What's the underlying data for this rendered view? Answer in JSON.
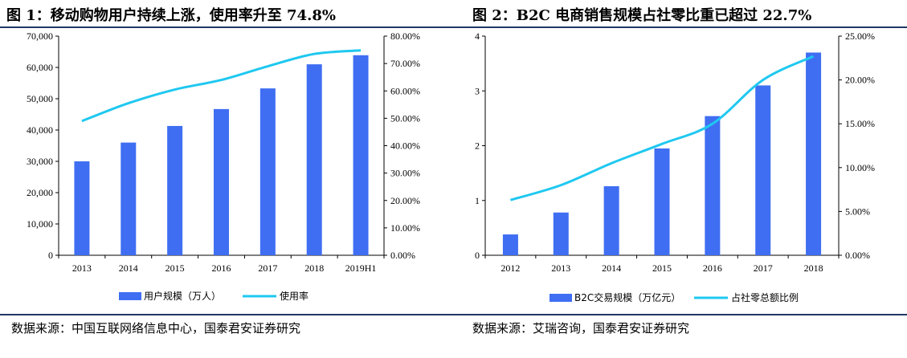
{
  "figure1": {
    "title": "图 1：移动购物用户持续上涨，使用率升至 74.8%",
    "source": "数据来源：中国互联网络信息中心，国泰君安证券研究"
  },
  "figure2": {
    "title": "图 2：B2C 电商销售规模占社零比重已超过 22.7%",
    "source": "数据来源：艾瑞咨询，国泰君安证券研究"
  },
  "colors": {
    "bar": "#3f6ef2",
    "line": "#1fc8f0",
    "axis": "#000000",
    "rule": "#1f3864"
  },
  "chart_data": [
    {
      "type": "bar",
      "categories": [
        "2013",
        "2014",
        "2015",
        "2016",
        "2017",
        "2018",
        "2019H1"
      ],
      "series": [
        {
          "name": "用户规模（万人）",
          "type": "bar",
          "axis": "left",
          "values": [
            30000,
            36000,
            41300,
            46700,
            53300,
            61000,
            63900
          ]
        },
        {
          "name": "使用率",
          "type": "line",
          "axis": "right",
          "values": [
            0.49,
            0.555,
            0.605,
            0.64,
            0.69,
            0.735,
            0.748
          ]
        }
      ],
      "y_left": {
        "min": 0,
        "max": 70000,
        "step": 10000,
        "ticks": [
          "0",
          "10,000",
          "20,000",
          "30,000",
          "40,000",
          "50,000",
          "60,000",
          "70,000"
        ]
      },
      "y_right": {
        "min": 0,
        "max": 0.8,
        "step": 0.1,
        "ticks": [
          "0.00%",
          "10.00%",
          "20.00%",
          "30.00%",
          "40.00%",
          "50.00%",
          "60.00%",
          "70.00%",
          "80.00%"
        ]
      },
      "legend": "bottom",
      "grid": false
    },
    {
      "type": "bar",
      "categories": [
        "2012",
        "2013",
        "2014",
        "2015",
        "2016",
        "2017",
        "2018"
      ],
      "series": [
        {
          "name": "B2C交易规模（万亿元）",
          "type": "bar",
          "axis": "left",
          "values": [
            0.38,
            0.78,
            1.26,
            1.95,
            2.54,
            3.1,
            3.7
          ]
        },
        {
          "name": "占社零总额比例",
          "type": "line",
          "axis": "right",
          "values": [
            0.063,
            0.08,
            0.105,
            0.127,
            0.15,
            0.2,
            0.227
          ]
        }
      ],
      "y_left": {
        "min": 0,
        "max": 4,
        "step": 1,
        "ticks": [
          "0",
          "1",
          "2",
          "3",
          "4"
        ]
      },
      "y_right": {
        "min": 0,
        "max": 0.25,
        "step": 0.05,
        "ticks": [
          "0.00%",
          "5.00%",
          "10.00%",
          "15.00%",
          "20.00%",
          "25.00%"
        ]
      },
      "legend": "bottom",
      "grid": false
    }
  ]
}
